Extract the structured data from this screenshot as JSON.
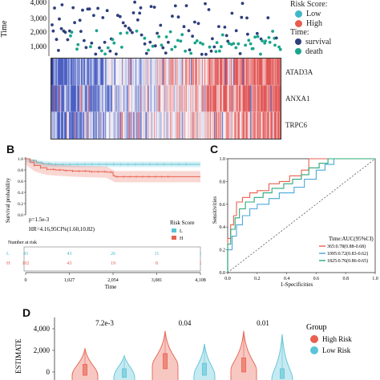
{
  "panel_a": {
    "ylabel": "Time",
    "yticks": [
      "4,000",
      "3,000",
      "2,000",
      "1,000"
    ],
    "legend": {
      "risk_title": "Risk Score:",
      "risk_items": [
        {
          "label": "Low",
          "color": "#3fb7c9"
        },
        {
          "label": "High",
          "color": "#e85d4f"
        }
      ],
      "time_title": "Time:",
      "time_items": [
        {
          "label": "survival",
          "color": "#2d3f7c"
        },
        {
          "label": "death",
          "color": "#1aa48c"
        }
      ]
    },
    "genes": [
      "ATAD3A",
      "ANXA1",
      "TRPC6"
    ]
  },
  "panel_b": {
    "letter": "B",
    "ylabel": "Survival probability",
    "xlabel": "Time",
    "pvalue": "p=1.5e-3",
    "hr": "HR=4.16,95CI%(1.60,10.82)",
    "legend_title": "Risk Score",
    "legend_items": [
      {
        "label": "L",
        "color": "#5bc4d6"
      },
      {
        "label": "H",
        "color": "#e8614f"
      }
    ],
    "yticks": [
      "1.0",
      "0.8",
      "0.6",
      "0.4",
      "0.2",
      "0.0"
    ],
    "xticks": [
      "0",
      "1,027",
      "2,054",
      "3,081",
      "4,108"
    ],
    "risk_table_title": "Number at risk",
    "risk_rows": [
      {
        "name": "L",
        "values": [
          "43",
          "43",
          "26",
          "11",
          "1"
        ],
        "color": "#3fb7c9"
      },
      {
        "name": "H",
        "values": [
          "102",
          "43",
          "19",
          "8",
          "1"
        ],
        "color": "#e85d4f"
      }
    ]
  },
  "panel_c": {
    "letter": "C",
    "ylabel": "Sensitivities",
    "xlabel": "1-Specificities",
    "yticks": [
      "1.0",
      "0.8",
      "0.6",
      "0.4",
      "0.2",
      "0.0"
    ],
    "xticks": [
      "0.0",
      "0.2",
      "0.4",
      "0.6",
      "0.8",
      "1.0"
    ],
    "legend_title": "Time:AUC(95%CI)",
    "legend_items": [
      {
        "label": "365:0.78(0.88-0.68)",
        "color": "#e8614f"
      },
      {
        "label": "1095:0.72(0.83-0.62)",
        "color": "#4aa8d8"
      },
      {
        "label": "1825:0.76(0.86-0.65)",
        "color": "#2aa87a"
      }
    ]
  },
  "panel_d": {
    "letter": "D",
    "ylabel": "ESTIMATE",
    "yticks": [
      "4,000",
      "2,000",
      "0"
    ],
    "pvalues": [
      "7.2e-3",
      "0.04",
      "0.01"
    ],
    "legend_title": "Group",
    "legend_items": [
      {
        "label": "High Risk",
        "color": "#e8614f"
      },
      {
        "label": "Low Risk",
        "color": "#5bc4d6"
      }
    ]
  },
  "chart_data": [
    {
      "type": "scatter",
      "ylabel": "Time",
      "ylim": [
        0,
        4300
      ],
      "series": [
        {
          "name": "survival",
          "color": "#2d3f7c"
        },
        {
          "name": "death",
          "color": "#1aa48c"
        }
      ]
    },
    {
      "type": "heatmap",
      "rows": [
        "ATAD3A",
        "ANXA1",
        "TRPC6"
      ]
    },
    {
      "type": "line",
      "xlabel": "Time",
      "ylabel": "Survival probability",
      "xlim": [
        0,
        4108
      ],
      "ylim": [
        0,
        1
      ],
      "series": [
        {
          "name": "L",
          "x": [
            0,
            100,
            250,
            400,
            600,
            800,
            1000,
            1500,
            2054,
            2500,
            3081,
            3600,
            4108
          ],
          "y": [
            1.0,
            0.97,
            0.93,
            0.91,
            0.9,
            0.9,
            0.9,
            0.9,
            0.9,
            0.9,
            0.9,
            0.9,
            0.9
          ]
        },
        {
          "name": "H",
          "x": [
            0,
            100,
            200,
            350,
            500,
            700,
            900,
            1100,
            1500,
            1900,
            2054,
            2100,
            2600,
            3081,
            3600,
            4108
          ],
          "y": [
            1.0,
            0.94,
            0.88,
            0.84,
            0.81,
            0.8,
            0.79,
            0.78,
            0.77,
            0.76,
            0.7,
            0.68,
            0.68,
            0.68,
            0.68,
            0.68
          ]
        }
      ]
    },
    {
      "type": "line",
      "xlabel": "1-Specificities",
      "ylabel": "Sensitivities",
      "xlim": [
        0,
        1
      ],
      "ylim": [
        0,
        1
      ],
      "series": [
        {
          "name": "365:0.78(0.88-0.68)",
          "x": [
            0,
            0.02,
            0.04,
            0.06,
            0.1,
            0.15,
            0.2,
            0.28,
            0.35,
            0.42,
            0.5,
            0.55,
            0.58,
            0.62,
            0.7,
            1.0
          ],
          "y": [
            0,
            0.3,
            0.42,
            0.5,
            0.62,
            0.66,
            0.7,
            0.72,
            0.78,
            0.8,
            0.85,
            0.9,
            1.0,
            1.0,
            1.0,
            1.0
          ]
        },
        {
          "name": "1095:0.72(0.83-0.62)",
          "x": [
            0,
            0.03,
            0.06,
            0.1,
            0.15,
            0.2,
            0.28,
            0.35,
            0.45,
            0.52,
            0.6,
            0.66,
            0.72,
            0.8,
            1.0
          ],
          "y": [
            0,
            0.2,
            0.32,
            0.42,
            0.5,
            0.56,
            0.6,
            0.65,
            0.7,
            0.75,
            0.82,
            0.9,
            0.95,
            1.0,
            1.0
          ]
        },
        {
          "name": "1825:0.76(0.86-0.65)",
          "x": [
            0,
            0.02,
            0.05,
            0.08,
            0.12,
            0.18,
            0.24,
            0.3,
            0.38,
            0.44,
            0.5,
            0.55,
            0.62,
            0.68,
            0.76,
            1.0
          ],
          "y": [
            0,
            0.25,
            0.38,
            0.48,
            0.56,
            0.62,
            0.66,
            0.7,
            0.74,
            0.78,
            0.82,
            0.86,
            0.92,
            0.96,
            1.0,
            1.0
          ]
        }
      ]
    },
    {
      "type": "violin",
      "ylabel": "ESTIMATE",
      "ylim": [
        -400,
        4400
      ],
      "groups": [
        {
          "pvalue": "7.2e-3",
          "high": {
            "median": 100,
            "q1": -300,
            "q3": 700,
            "min": -1500,
            "max": 2200
          },
          "low": {
            "median": -100,
            "q1": -500,
            "q3": 300,
            "min": -1500,
            "max": 1500
          }
        },
        {
          "pvalue": "0.04",
          "high": {
            "median": 1000,
            "q1": 300,
            "q3": 1700,
            "min": -1500,
            "max": 3800
          },
          "low": {
            "median": 100,
            "q1": -300,
            "q3": 800,
            "min": -1500,
            "max": 2600
          }
        },
        {
          "pvalue": "0.01",
          "high": {
            "median": 600,
            "q1": 0,
            "q3": 1300,
            "min": -1500,
            "max": 3800
          },
          "low": {
            "median": -200,
            "q1": -600,
            "q3": 300,
            "min": -1500,
            "max": 3500
          }
        }
      ]
    }
  ]
}
